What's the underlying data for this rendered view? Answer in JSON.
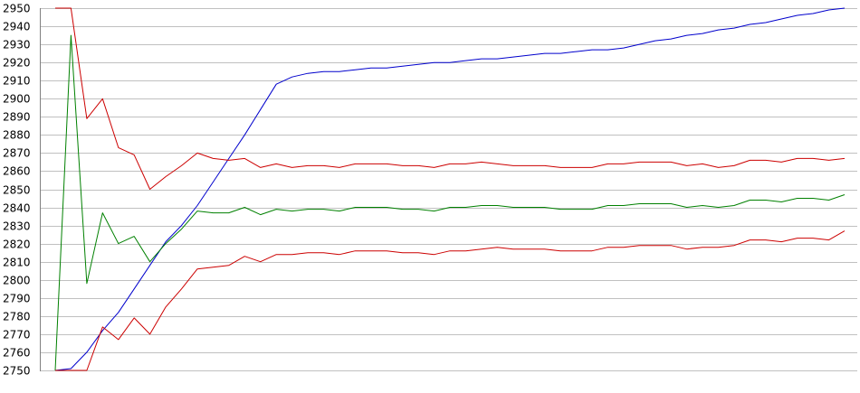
{
  "chart_data": {
    "type": "line",
    "title": "",
    "xlabel": "",
    "ylabel": "",
    "ylim": [
      2750,
      2950
    ],
    "y_ticks": [
      2750,
      2760,
      2770,
      2780,
      2790,
      2800,
      2810,
      2820,
      2830,
      2840,
      2850,
      2860,
      2870,
      2880,
      2890,
      2900,
      2910,
      2920,
      2930,
      2940,
      2950
    ],
    "x": [
      1,
      2,
      3,
      4,
      5,
      6,
      7,
      8,
      9,
      10,
      11,
      12,
      13,
      14,
      15,
      16,
      17,
      18,
      19,
      20,
      21,
      22,
      23,
      24,
      25,
      26,
      27,
      28,
      29,
      30,
      31,
      32,
      33,
      34,
      35,
      36,
      37,
      38,
      39,
      40,
      41,
      42,
      43,
      44,
      45,
      46,
      47,
      48,
      49,
      50,
      51
    ],
    "xlim": [
      1,
      51
    ],
    "grid": "horizontal",
    "series": [
      {
        "color": "#0000cc",
        "values": [
          2750,
          2751,
          2760,
          2772,
          2782,
          2795,
          2808,
          2821,
          2830,
          2841,
          2854,
          2867,
          2880,
          2894,
          2908,
          2912,
          2914,
          2915,
          2915,
          2916,
          2917,
          2917,
          2918,
          2919,
          2920,
          2920,
          2921,
          2922,
          2922,
          2923,
          2924,
          2925,
          2925,
          2926,
          2927,
          2927,
          2928,
          2930,
          2932,
          2933,
          2935,
          2936,
          2938,
          2939,
          2941,
          2942,
          2944,
          2946,
          2947,
          2949,
          2950
        ]
      },
      {
        "color": "#008000",
        "values": [
          2750,
          2935,
          2798,
          2837,
          2820,
          2824,
          2810,
          2820,
          2828,
          2838,
          2837,
          2837,
          2840,
          2836,
          2839,
          2838,
          2839,
          2839,
          2838,
          2840,
          2840,
          2840,
          2839,
          2839,
          2838,
          2840,
          2840,
          2841,
          2841,
          2840,
          2840,
          2840,
          2839,
          2839,
          2839,
          2841,
          2841,
          2842,
          2842,
          2842,
          2840,
          2841,
          2840,
          2841,
          2844,
          2844,
          2843,
          2845,
          2845,
          2844,
          2847
        ]
      },
      {
        "color": "#cc0000",
        "values": [
          2950,
          2950,
          2889,
          2900,
          2873,
          2869,
          2850,
          2857,
          2863,
          2870,
          2867,
          2866,
          2867,
          2862,
          2864,
          2862,
          2863,
          2863,
          2862,
          2864,
          2864,
          2864,
          2863,
          2863,
          2862,
          2864,
          2864,
          2865,
          2864,
          2863,
          2863,
          2863,
          2862,
          2862,
          2862,
          2864,
          2864,
          2865,
          2865,
          2865,
          2863,
          2864,
          2862,
          2863,
          2866,
          2866,
          2865,
          2867,
          2867,
          2866,
          2867
        ]
      },
      {
        "color": "#cc0000",
        "values": [
          2750,
          2750,
          2750,
          2774,
          2767,
          2779,
          2770,
          2785,
          2795,
          2806,
          2807,
          2808,
          2813,
          2810,
          2814,
          2814,
          2815,
          2815,
          2814,
          2816,
          2816,
          2816,
          2815,
          2815,
          2814,
          2816,
          2816,
          2817,
          2818,
          2817,
          2817,
          2817,
          2816,
          2816,
          2816,
          2818,
          2818,
          2819,
          2819,
          2819,
          2817,
          2818,
          2818,
          2819,
          2822,
          2822,
          2821,
          2823,
          2823,
          2822,
          2827
        ]
      }
    ]
  },
  "colors": {
    "background": "#ffffff",
    "gridline": "#c0c0c0",
    "axis": "#808080",
    "tick_text": "#000000"
  }
}
